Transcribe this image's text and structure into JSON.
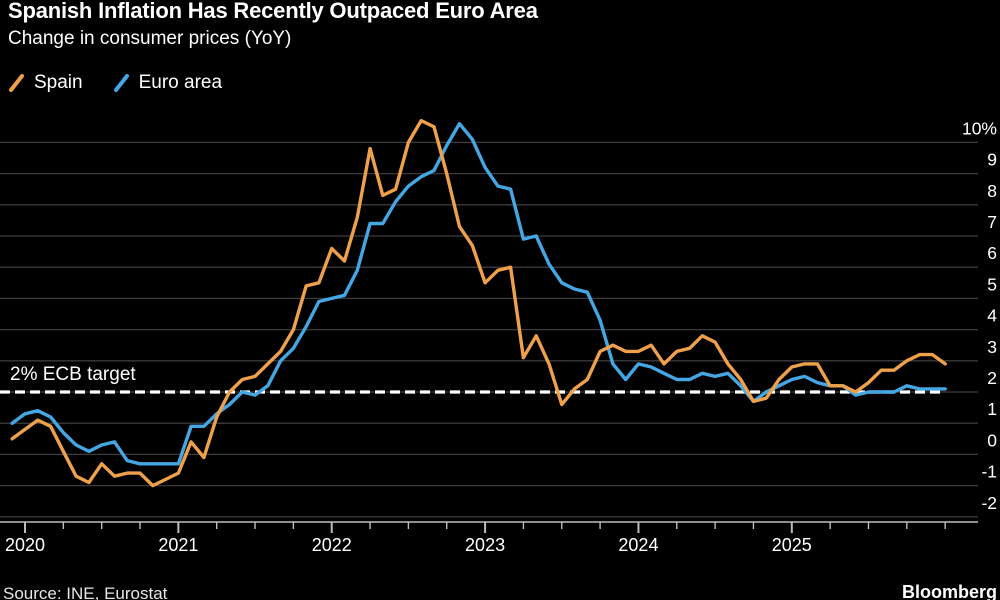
{
  "header": {
    "title": "Spanish Inflation Has Recently Outpaced Euro Area",
    "subtitle": "Change in consumer prices (YoY)"
  },
  "footer": {
    "source": "Source: INE, Eurostat",
    "brand": "Bloomberg"
  },
  "colors": {
    "background": "#000000",
    "text": "#ffffff",
    "grid": "#3c3c3c",
    "axis": "#bdbdbd",
    "target_line": "#ffffff",
    "spain": "#EFA04A",
    "euro_area": "#44A7E4"
  },
  "chart_data": {
    "type": "line",
    "title": "Spanish Inflation Has Recently Outpaced Euro Area",
    "subtitle": "Change in consumer prices (YoY)",
    "unit": "%",
    "frequency": "monthly",
    "x_start": "2019-11",
    "x_end": "2025-12",
    "n_points": 74,
    "ylim": [
      -2,
      10
    ],
    "grid": true,
    "legend_position": "top-left",
    "y_ticks": [
      {
        "value": 10,
        "label": "10%"
      },
      {
        "value": 9,
        "label": "9"
      },
      {
        "value": 8,
        "label": "8"
      },
      {
        "value": 7,
        "label": "7"
      },
      {
        "value": 6,
        "label": "6"
      },
      {
        "value": 5,
        "label": "5"
      },
      {
        "value": 4,
        "label": "4"
      },
      {
        "value": 3,
        "label": "3"
      },
      {
        "value": 2,
        "label": "2"
      },
      {
        "value": 1,
        "label": "1"
      },
      {
        "value": 0,
        "label": "0"
      },
      {
        "value": -1,
        "label": "-1"
      },
      {
        "value": -2,
        "label": "-2"
      }
    ],
    "x_year_labels": [
      "2020",
      "2021",
      "2022",
      "2023",
      "2024",
      "2025"
    ],
    "target_line": {
      "value": 2,
      "label": "2% ECB target",
      "style": "dashed",
      "color": "#ffffff"
    },
    "series": [
      {
        "name": "Spain",
        "color": "#EFA04A",
        "values": [
          0.5,
          0.8,
          1.1,
          0.9,
          0.1,
          -0.7,
          -0.9,
          -0.3,
          -0.7,
          -0.6,
          -0.6,
          -1.0,
          -0.8,
          -0.6,
          0.4,
          -0.1,
          1.2,
          2.0,
          2.4,
          2.5,
          2.9,
          3.3,
          4.0,
          5.4,
          5.5,
          6.6,
          6.2,
          7.6,
          9.8,
          8.3,
          8.5,
          10.0,
          10.7,
          10.5,
          9.0,
          7.3,
          6.7,
          5.5,
          5.9,
          6.0,
          3.1,
          3.8,
          2.9,
          1.6,
          2.1,
          2.4,
          3.3,
          3.5,
          3.3,
          3.3,
          3.5,
          2.9,
          3.3,
          3.4,
          3.8,
          3.6,
          2.9,
          2.4,
          1.7,
          1.8,
          2.4,
          2.8,
          2.9,
          2.9,
          2.2,
          2.2,
          2.0,
          2.3,
          2.7,
          2.7,
          3.0,
          3.2,
          3.2,
          2.9
        ]
      },
      {
        "name": "Euro area",
        "color": "#44A7E4",
        "values": [
          1.0,
          1.3,
          1.4,
          1.2,
          0.7,
          0.3,
          0.1,
          0.3,
          0.4,
          -0.2,
          -0.3,
          -0.3,
          -0.3,
          -0.3,
          0.9,
          0.9,
          1.3,
          1.6,
          2.0,
          1.9,
          2.2,
          3.0,
          3.4,
          4.1,
          4.9,
          5.0,
          5.1,
          5.9,
          7.4,
          7.4,
          8.1,
          8.6,
          8.9,
          9.1,
          9.9,
          10.6,
          10.1,
          9.2,
          8.6,
          8.5,
          6.9,
          7.0,
          6.1,
          5.5,
          5.3,
          5.2,
          4.3,
          2.9,
          2.4,
          2.9,
          2.8,
          2.6,
          2.4,
          2.4,
          2.6,
          2.5,
          2.6,
          2.2,
          1.7,
          2.0,
          2.2,
          2.4,
          2.5,
          2.3,
          2.2,
          2.2,
          1.9,
          2.0,
          2.0,
          2.0,
          2.2,
          2.1,
          2.1,
          2.1
        ]
      }
    ]
  }
}
